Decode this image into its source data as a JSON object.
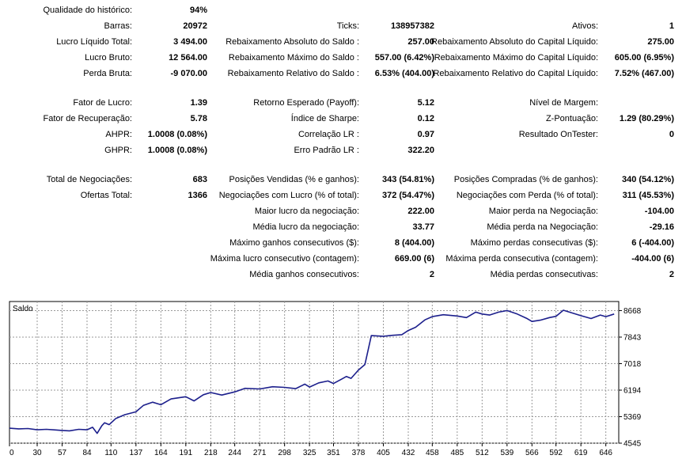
{
  "report": {
    "rows": [
      [
        {
          "label": "Qualidade do histórico:",
          "value": "94%"
        },
        {
          "label": "",
          "value": ""
        },
        {
          "label": "",
          "value": ""
        }
      ],
      [
        {
          "label": "Barras:",
          "value": "20972"
        },
        {
          "label": "Ticks:",
          "value": "138957382"
        },
        {
          "label": "Ativos:",
          "value": "1"
        }
      ],
      [
        {
          "label": "Lucro Líquido Total:",
          "value": "3 494.00"
        },
        {
          "label": "Rebaixamento Absoluto do Saldo :",
          "value": "257.00"
        },
        {
          "label": "Rebaixamento Absoluto do Capital Líquido:",
          "value": "275.00"
        }
      ],
      [
        {
          "label": "Lucro Bruto:",
          "value": "12 564.00"
        },
        {
          "label": "Rebaixamento Máximo do Saldo :",
          "value": "557.00 (6.42%)"
        },
        {
          "label": "Rebaixamento Máximo do Capital Líquido:",
          "value": "605.00 (6.95%)"
        }
      ],
      [
        {
          "label": "Perda Bruta:",
          "value": "-9 070.00"
        },
        {
          "label": "Rebaixamento Relativo do Saldo :",
          "value": "6.53% (404.00)"
        },
        {
          "label": "Rebaixamento Relativo do Capital Líquido:",
          "value": "7.52% (467.00)"
        }
      ],
      [
        {
          "label": "Fator de Lucro:",
          "value": "1.39"
        },
        {
          "label": "Retorno Esperado (Payoff):",
          "value": "5.12"
        },
        {
          "label": "Nível de Margem:",
          "value": ""
        }
      ],
      [
        {
          "label": "Fator de Recuperação:",
          "value": "5.78"
        },
        {
          "label": "Índice de Sharpe:",
          "value": "0.12"
        },
        {
          "label": "Z-Pontuação:",
          "value": "1.29 (80.29%)"
        }
      ],
      [
        {
          "label": "AHPR:",
          "value": "1.0008 (0.08%)"
        },
        {
          "label": "Correlação LR :",
          "value": "0.97"
        },
        {
          "label": "Resultado OnTester:",
          "value": "0"
        }
      ],
      [
        {
          "label": "GHPR:",
          "value": "1.0008 (0.08%)"
        },
        {
          "label": "Erro Padrão LR :",
          "value": "322.20"
        },
        {
          "label": "",
          "value": ""
        }
      ],
      [
        {
          "label": "Total de Negociações:",
          "value": "683"
        },
        {
          "label": "Posições Vendidas (% e ganhos):",
          "value": "343 (54.81%)"
        },
        {
          "label": "Posições Compradas (% de ganhos):",
          "value": "340 (54.12%)"
        }
      ],
      [
        {
          "label": "Ofertas Total:",
          "value": "1366"
        },
        {
          "label": "Negociações com Lucro (% of total):",
          "value": "372 (54.47%)"
        },
        {
          "label": "Negociações com Perda (% of total):",
          "value": "311 (45.53%)"
        }
      ],
      [
        {
          "label": "",
          "value": ""
        },
        {
          "label": "Maior lucro da negociação:",
          "value": "222.00"
        },
        {
          "label": "Maior perda na Negociação:",
          "value": "-104.00"
        }
      ],
      [
        {
          "label": "",
          "value": ""
        },
        {
          "label": "Média lucro da negociação:",
          "value": "33.77"
        },
        {
          "label": "Média perda na Negociação:",
          "value": "-29.16"
        }
      ],
      [
        {
          "label": "",
          "value": ""
        },
        {
          "label": "Máximo ganhos consecutivos ($):",
          "value": "8 (404.00)"
        },
        {
          "label": "Máximo perdas consecutivas ($):",
          "value": "6 (-404.00)"
        }
      ],
      [
        {
          "label": "",
          "value": ""
        },
        {
          "label": "Máxima lucro consecutivo (contagem):",
          "value": "669.00 (6)"
        },
        {
          "label": "Máxima perda consecutiva (contagem):",
          "value": "-404.00 (6)"
        }
      ],
      [
        {
          "label": "",
          "value": ""
        },
        {
          "label": "Média ganhos consecutivos:",
          "value": "2"
        },
        {
          "label": "Média perdas consecutivas:",
          "value": "2"
        }
      ]
    ]
  },
  "chart_data": {
    "type": "line",
    "title": "Saldo",
    "xlabel": "",
    "ylabel": "",
    "xlim": [
      0,
      660
    ],
    "ylim": [
      4545,
      8950
    ],
    "x_ticks": [
      0,
      30,
      57,
      84,
      110,
      137,
      164,
      191,
      218,
      244,
      271,
      298,
      325,
      351,
      378,
      405,
      432,
      458,
      485,
      512,
      539,
      566,
      592,
      619,
      646
    ],
    "y_ticks": [
      4545,
      5369,
      6194,
      7018,
      7843,
      8668
    ],
    "grid": true,
    "line_color": "#1c1f8c",
    "series": [
      {
        "name": "Saldo",
        "x": [
          0,
          10,
          20,
          30,
          40,
          50,
          57,
          65,
          75,
          84,
          90,
          95,
          100,
          103,
          108,
          115,
          125,
          137,
          145,
          155,
          164,
          175,
          191,
          200,
          210,
          218,
          230,
          244,
          255,
          271,
          285,
          298,
          310,
          320,
          325,
          335,
          345,
          351,
          360,
          365,
          370,
          378,
          385,
          392,
          405,
          415,
          425,
          432,
          440,
          450,
          458,
          470,
          485,
          495,
          505,
          512,
          520,
          530,
          539,
          550,
          560,
          566,
          575,
          585,
          592,
          600,
          610,
          619,
          630,
          640,
          646,
          655
        ],
        "y": [
          5010,
          4990,
          5000,
          4960,
          4975,
          4955,
          4940,
          4930,
          4975,
          4960,
          5040,
          4850,
          5090,
          5180,
          5120,
          5310,
          5430,
          5520,
          5720,
          5820,
          5740,
          5920,
          5990,
          5860,
          6050,
          6120,
          6040,
          6140,
          6250,
          6230,
          6300,
          6280,
          6240,
          6380,
          6290,
          6420,
          6480,
          6400,
          6540,
          6620,
          6560,
          6820,
          6990,
          7890,
          7870,
          7900,
          7920,
          8050,
          8150,
          8380,
          8480,
          8540,
          8500,
          8450,
          8620,
          8560,
          8530,
          8620,
          8670,
          8560,
          8430,
          8330,
          8370,
          8450,
          8490,
          8680,
          8590,
          8510,
          8420,
          8530,
          8480,
          8560
        ]
      }
    ]
  }
}
